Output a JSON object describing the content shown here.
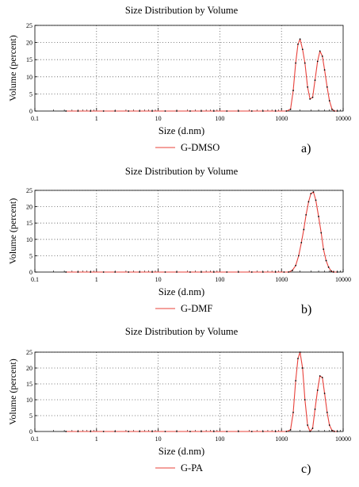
{
  "colors": {
    "series": "#e8403a",
    "grid": "#555555",
    "axis": "#000000"
  },
  "chart_data": [
    {
      "type": "line",
      "title": "Size Distribution by Volume",
      "xlabel": "Size (d.nm)",
      "ylabel": "Volume (percent)",
      "xscale": "log",
      "xlim": [
        0.1,
        10000
      ],
      "ylim": [
        0,
        25
      ],
      "xticks": [
        "0.1",
        "1",
        "10",
        "100",
        "1000",
        "10000"
      ],
      "yticks": [
        "0",
        "5",
        "10",
        "15",
        "20",
        "25"
      ],
      "grid": true,
      "legend_position": "bottom",
      "panel_label": "a)",
      "series": [
        {
          "name": "G-DMSO",
          "x": [
            0.32,
            0.5,
            0.8,
            1.3,
            2,
            3.3,
            5,
            8,
            13,
            20,
            33,
            50,
            80,
            130,
            200,
            330,
            500,
            800,
            1200,
            1400,
            1550,
            1700,
            1850,
            2000,
            2200,
            2400,
            2650,
            2900,
            3200,
            3500,
            3850,
            4200,
            4600,
            5000,
            5500,
            6000,
            6600,
            7200,
            8000
          ],
          "y": [
            0,
            0,
            0,
            0,
            0,
            0,
            0,
            0,
            0,
            0,
            0,
            0,
            0,
            0,
            0,
            0,
            0,
            0,
            0,
            0.5,
            6,
            14,
            19.5,
            21,
            18,
            14,
            7,
            3.5,
            4,
            9,
            14.5,
            17.5,
            16,
            12,
            7,
            3,
            0.5,
            0,
            0
          ]
        }
      ]
    },
    {
      "type": "line",
      "title": "Size Distribution by Volume",
      "xlabel": "Size (d.nm)",
      "ylabel": "Volume (percent)",
      "xscale": "log",
      "xlim": [
        0.1,
        10000
      ],
      "ylim": [
        0,
        25
      ],
      "xticks": [
        "0.1",
        "1",
        "10",
        "100",
        "1000",
        "10000"
      ],
      "yticks": [
        "0",
        "5",
        "10",
        "15",
        "20",
        "25"
      ],
      "grid": true,
      "legend_position": "bottom",
      "panel_label": "b)",
      "series": [
        {
          "name": "G-DMF",
          "x": [
            0.32,
            0.5,
            0.8,
            1.3,
            2,
            3.3,
            5,
            8,
            13,
            20,
            33,
            50,
            80,
            130,
            200,
            330,
            500,
            800,
            1100,
            1300,
            1500,
            1700,
            1900,
            2100,
            2300,
            2500,
            2750,
            3000,
            3300,
            3600,
            4000,
            4400,
            4800,
            5300,
            5800,
            6400,
            7000,
            8000
          ],
          "y": [
            0,
            0,
            0,
            0,
            0,
            0,
            0,
            0,
            0,
            0,
            0,
            0,
            0,
            0,
            0,
            0,
            0,
            0,
            0,
            0,
            0.5,
            2,
            5,
            9,
            13,
            17.5,
            21.5,
            24,
            24.5,
            22,
            17,
            12,
            7,
            3.5,
            1.5,
            0.3,
            0,
            0
          ]
        }
      ]
    },
    {
      "type": "line",
      "title": "Size Distribution by Volume",
      "xlabel": "Size (d.nm)",
      "ylabel": "Volume (percent)",
      "xscale": "log",
      "xlim": [
        0.1,
        10000
      ],
      "ylim": [
        0,
        25
      ],
      "xticks": [
        "0.1",
        "1",
        "10",
        "100",
        "1000",
        "10000"
      ],
      "yticks": [
        "0",
        "5",
        "10",
        "15",
        "20",
        "25"
      ],
      "grid": true,
      "legend_position": "bottom",
      "panel_label": "c)",
      "series": [
        {
          "name": "G-PA",
          "x": [
            0.32,
            0.5,
            0.8,
            1.3,
            2,
            3.3,
            5,
            8,
            13,
            20,
            33,
            50,
            80,
            130,
            200,
            330,
            500,
            800,
            1200,
            1400,
            1550,
            1700,
            1850,
            2000,
            2200,
            2400,
            2650,
            2900,
            3200,
            3500,
            3850,
            4200,
            4600,
            5000,
            5500,
            6000,
            6600,
            7200,
            8000
          ],
          "y": [
            0,
            0,
            0,
            0,
            0,
            0,
            0,
            0,
            0,
            0,
            0,
            0,
            0,
            0,
            0,
            0,
            0,
            0,
            0,
            0.5,
            6,
            16,
            23,
            25,
            20,
            10,
            2,
            0,
            1,
            7,
            13,
            17.5,
            17,
            12,
            6,
            2,
            0.3,
            0,
            0
          ]
        }
      ]
    }
  ]
}
